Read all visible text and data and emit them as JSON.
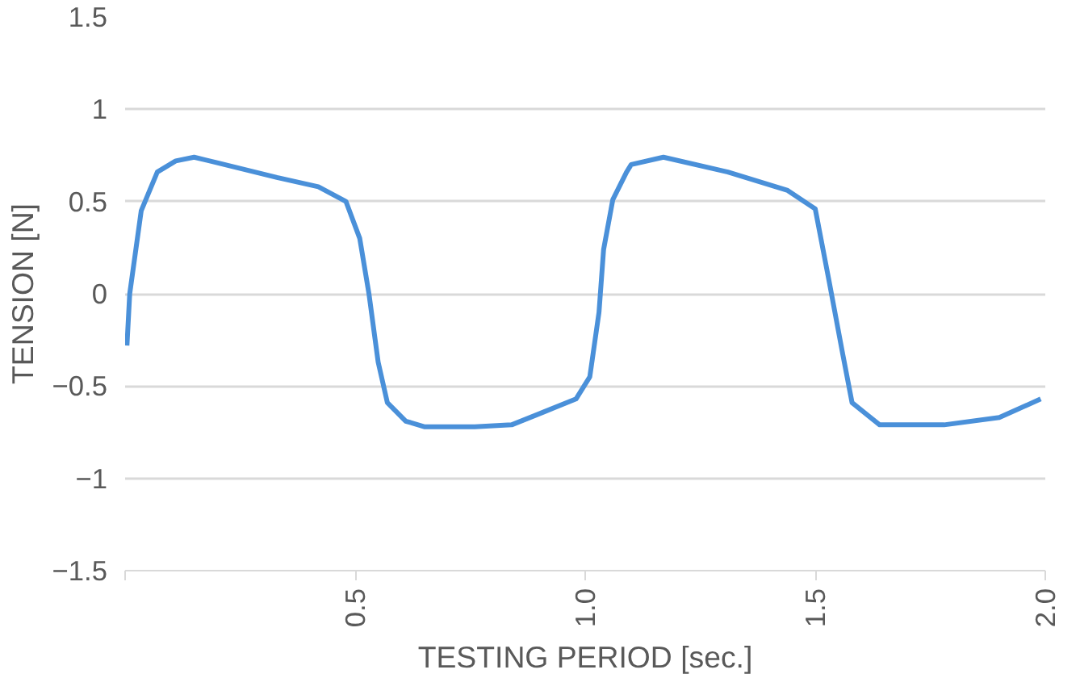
{
  "chart_data": {
    "type": "line",
    "xlabel": "TESTING PERIOD [sec.]",
    "ylabel": "TENSION [N]",
    "xlim": [
      0,
      2
    ],
    "xticks": [
      {
        "value": 0,
        "label": null
      },
      {
        "value": 0.5,
        "label": "0.5"
      },
      {
        "value": 1,
        "label": "1.0"
      },
      {
        "value": 1.5,
        "label": "1.5"
      },
      {
        "value": 2,
        "label": "2.0"
      }
    ],
    "ylim": [
      -1.5,
      1.5
    ],
    "yticks": [
      -1.5,
      -1,
      -0.5,
      0,
      0.5,
      1,
      1.5
    ],
    "grid": "y",
    "x": [
      0.004,
      0.01,
      0.035,
      0.07,
      0.11,
      0.15,
      0.2,
      0.33,
      0.42,
      0.48,
      0.51,
      0.53,
      0.55,
      0.57,
      0.61,
      0.65,
      0.76,
      0.84,
      0.91,
      0.98,
      1.01,
      1.03,
      1.04,
      1.06,
      1.09,
      1.1,
      1.17,
      1.31,
      1.44,
      1.5,
      1.53,
      1.56,
      1.58,
      1.64,
      1.78,
      1.9,
      1.99
    ],
    "series": [
      {
        "color": "#4a90d9",
        "values": [
          -0.28,
          0.0,
          0.45,
          0.66,
          0.72,
          0.74,
          0.71,
          0.63,
          0.58,
          0.5,
          0.3,
          0.0,
          -0.37,
          -0.59,
          -0.69,
          -0.72,
          -0.72,
          -0.71,
          -0.64,
          -0.57,
          -0.45,
          -0.1,
          0.24,
          0.51,
          0.66,
          0.7,
          0.74,
          0.66,
          0.56,
          0.46,
          0.07,
          -0.33,
          -0.59,
          -0.71,
          -0.71,
          -0.67,
          -0.57
        ]
      }
    ]
  }
}
